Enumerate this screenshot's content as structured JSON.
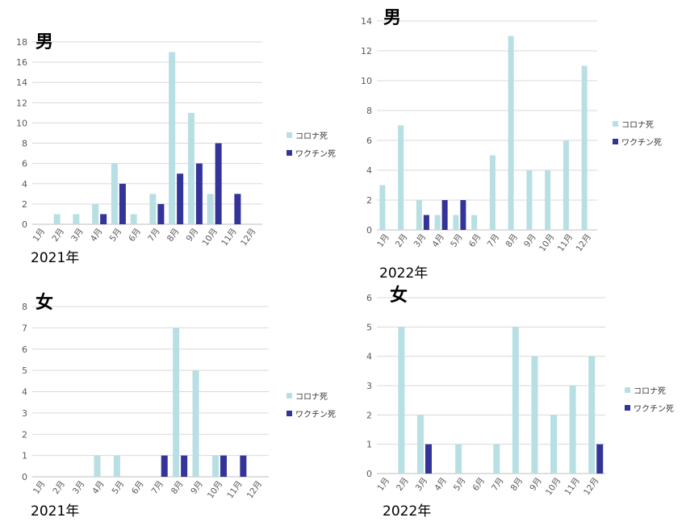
{
  "colors": {
    "corona": "#b8dfe3",
    "vaccine": "#333399",
    "grid": "#d9d9d9",
    "tick": "#595959"
  },
  "legend": {
    "corona": "コロナ死",
    "vaccine": "ワクチン死"
  },
  "chart_data": [
    {
      "type": "bar",
      "title": "男",
      "year": "2021年",
      "categories": [
        "1月",
        "2月",
        "3月",
        "4月",
        "5月",
        "6月",
        "7月",
        "8月",
        "9月",
        "10月",
        "11月",
        "12月"
      ],
      "ylim": [
        0,
        18
      ],
      "yticks": [
        0,
        2,
        4,
        6,
        8,
        10,
        12,
        14,
        16,
        18
      ],
      "grid": true,
      "legend_position": "right",
      "series": [
        {
          "name": "コロナ死",
          "values": [
            0,
            1,
            1,
            2,
            6,
            1,
            3,
            17,
            11,
            3,
            0,
            0
          ]
        },
        {
          "name": "ワクチン死",
          "values": [
            0,
            0,
            0,
            1,
            4,
            0,
            2,
            5,
            6,
            8,
            3,
            0
          ]
        }
      ]
    },
    {
      "type": "bar",
      "title": "男",
      "year": "2022年",
      "categories": [
        "1月",
        "2月",
        "3月",
        "4月",
        "5月",
        "6月",
        "7月",
        "8月",
        "9月",
        "10月",
        "11月",
        "12月"
      ],
      "ylim": [
        0,
        14
      ],
      "yticks": [
        0,
        2,
        4,
        6,
        8,
        10,
        12,
        14
      ],
      "grid": true,
      "legend_position": "right",
      "series": [
        {
          "name": "コロナ死",
          "values": [
            3,
            7,
            2,
            1,
            1,
            1,
            5,
            13,
            4,
            4,
            6,
            11
          ]
        },
        {
          "name": "ワクチン死",
          "values": [
            0,
            0,
            1,
            2,
            2,
            0,
            0,
            0,
            0,
            0,
            0,
            0
          ]
        }
      ]
    },
    {
      "type": "bar",
      "title": "女",
      "year": "2021年",
      "categories": [
        "1月",
        "2月",
        "3月",
        "4月",
        "5月",
        "6月",
        "7月",
        "8月",
        "9月",
        "10月",
        "11月",
        "12月"
      ],
      "ylim": [
        0,
        8
      ],
      "yticks": [
        0,
        1,
        2,
        3,
        4,
        5,
        6,
        7,
        8
      ],
      "grid": true,
      "legend_position": "right",
      "series": [
        {
          "name": "コロナ死",
          "values": [
            0,
            0,
            0,
            1,
            1,
            0,
            0,
            7,
            5,
            1,
            0,
            0
          ]
        },
        {
          "name": "ワクチン死",
          "values": [
            0,
            0,
            0,
            0,
            0,
            0,
            1,
            1,
            0,
            1,
            1,
            0
          ]
        }
      ]
    },
    {
      "type": "bar",
      "title": "女",
      "year": "2022年",
      "categories": [
        "1月",
        "2月",
        "3月",
        "4月",
        "5月",
        "6月",
        "7月",
        "8月",
        "9月",
        "10月",
        "11月",
        "12月"
      ],
      "ylim": [
        0,
        6
      ],
      "yticks": [
        0,
        1,
        2,
        3,
        4,
        5,
        6
      ],
      "grid": true,
      "legend_position": "right",
      "series": [
        {
          "name": "コロナ死",
          "values": [
            0,
            5,
            2,
            0,
            1,
            0,
            1,
            5,
            4,
            2,
            3,
            4
          ]
        },
        {
          "name": "ワクチン死",
          "values": [
            0,
            0,
            1,
            0,
            0,
            0,
            0,
            0,
            0,
            0,
            0,
            1
          ]
        }
      ]
    }
  ]
}
